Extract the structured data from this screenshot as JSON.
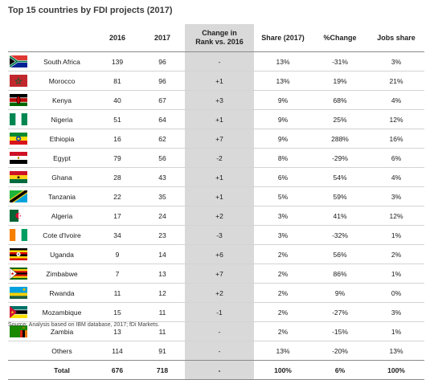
{
  "title": "Top 15 countries by FDI projects (2017)",
  "columns": [
    "",
    "",
    "2016",
    "2017",
    "Change in\nRank vs. 2016",
    "Share (2017)",
    "%Change",
    "Jobs share"
  ],
  "rows": [
    {
      "country": "South Africa",
      "y2016": "139",
      "y2017": "96",
      "rank_change": "-",
      "share": "13%",
      "pct_change": "-31%",
      "jobs_share": "3%",
      "flag": "south-africa-flag-icon"
    },
    {
      "country": "Morocco",
      "y2016": "81",
      "y2017": "96",
      "rank_change": "+1",
      "share": "13%",
      "pct_change": "19%",
      "jobs_share": "21%",
      "flag": "morocco-flag-icon"
    },
    {
      "country": "Kenya",
      "y2016": "40",
      "y2017": "67",
      "rank_change": "+3",
      "share": "9%",
      "pct_change": "68%",
      "jobs_share": "4%",
      "flag": "kenya-flag-icon"
    },
    {
      "country": "Nigeria",
      "y2016": "51",
      "y2017": "64",
      "rank_change": "+1",
      "share": "9%",
      "pct_change": "25%",
      "jobs_share": "12%",
      "flag": "nigeria-flag-icon"
    },
    {
      "country": "Ethiopia",
      "y2016": "16",
      "y2017": "62",
      "rank_change": "+7",
      "share": "9%",
      "pct_change": "288%",
      "jobs_share": "16%",
      "flag": "ethiopia-flag-icon"
    },
    {
      "country": "Egypt",
      "y2016": "79",
      "y2017": "56",
      "rank_change": "-2",
      "share": "8%",
      "pct_change": "-29%",
      "jobs_share": "6%",
      "flag": "egypt-flag-icon"
    },
    {
      "country": "Ghana",
      "y2016": "28",
      "y2017": "43",
      "rank_change": "+1",
      "share": "6%",
      "pct_change": "54%",
      "jobs_share": "4%",
      "flag": "ghana-flag-icon"
    },
    {
      "country": "Tanzania",
      "y2016": "22",
      "y2017": "35",
      "rank_change": "+1",
      "share": "5%",
      "pct_change": "59%",
      "jobs_share": "3%",
      "flag": "tanzania-flag-icon"
    },
    {
      "country": "Algeria",
      "y2016": "17",
      "y2017": "24",
      "rank_change": "+2",
      "share": "3%",
      "pct_change": "41%",
      "jobs_share": "12%",
      "flag": "algeria-flag-icon"
    },
    {
      "country": "Cote d'Ivoire",
      "y2016": "34",
      "y2017": "23",
      "rank_change": "-3",
      "share": "3%",
      "pct_change": "-32%",
      "jobs_share": "1%",
      "flag": "cote-divoire-flag-icon"
    },
    {
      "country": "Uganda",
      "y2016": "9",
      "y2017": "14",
      "rank_change": "+6",
      "share": "2%",
      "pct_change": "56%",
      "jobs_share": "2%",
      "flag": "uganda-flag-icon"
    },
    {
      "country": "Zimbabwe",
      "y2016": "7",
      "y2017": "13",
      "rank_change": "+7",
      "share": "2%",
      "pct_change": "86%",
      "jobs_share": "1%",
      "flag": "zimbabwe-flag-icon"
    },
    {
      "country": "Rwanda",
      "y2016": "11",
      "y2017": "12",
      "rank_change": "+2",
      "share": "2%",
      "pct_change": "9%",
      "jobs_share": "0%",
      "flag": "rwanda-flag-icon"
    },
    {
      "country": "Mozambique",
      "y2016": "15",
      "y2017": "11",
      "rank_change": "-1",
      "share": "2%",
      "pct_change": "-27%",
      "jobs_share": "3%",
      "flag": "mozambique-flag-icon"
    },
    {
      "country": "Zambia",
      "y2016": "13",
      "y2017": "11",
      "rank_change": "-",
      "share": "2%",
      "pct_change": "-15%",
      "jobs_share": "1%",
      "flag": "zambia-flag-icon"
    }
  ],
  "others": {
    "country": "Others",
    "y2016": "114",
    "y2017": "91",
    "rank_change": "-",
    "share": "13%",
    "pct_change": "-20%",
    "jobs_share": "13%"
  },
  "total": {
    "country": "Total",
    "y2016": "676",
    "y2017": "718",
    "rank_change": "-",
    "share": "100%",
    "pct_change": "6%",
    "jobs_share": "100%"
  },
  "source": "Source: Analysis based on IBM database, 2017; fDi Markets.",
  "colors": {
    "change_column_bg": "#d9d9d9",
    "rule_dark": "#8a8a8a",
    "rule_light": "#d4d4d4"
  }
}
